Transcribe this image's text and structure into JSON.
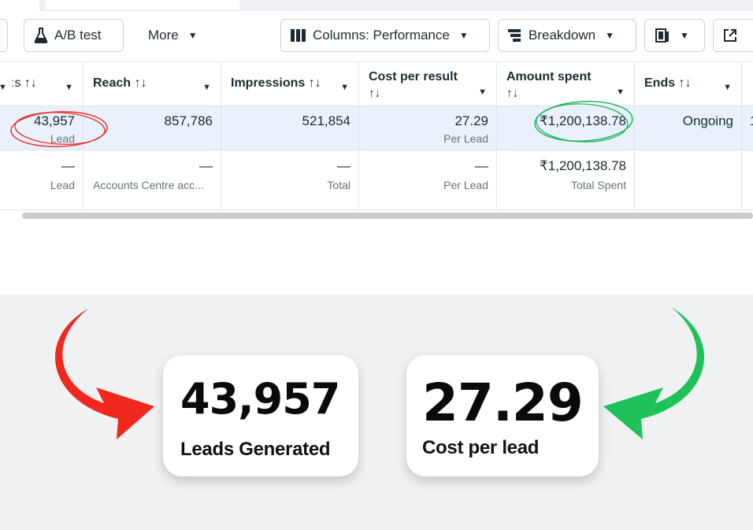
{
  "toolbar": {
    "ab_test_label": "A/B test",
    "more_label": "More",
    "columns_label": "Columns: Performance",
    "breakdown_label": "Breakdown"
  },
  "table": {
    "headers": {
      "results": "ːs ↑↓",
      "reach": "Reach ↑↓",
      "impressions": "Impressions ↑↓",
      "cost_per_result_line1": "Cost per result",
      "cost_per_result_line2": "↑↓",
      "amount_spent_line1": "Amount spent",
      "amount_spent_line2": "↑↓",
      "ends": "Ends ↑↓"
    },
    "row1": {
      "results": "43,957",
      "results_sub": "Lead",
      "reach": "857,786",
      "impressions": "521,854",
      "cost_per_result": "27.29",
      "cost_per_result_sub": "Per Lead",
      "amount_spent": "₹1,200,138.78",
      "ends": "Ongoing"
    },
    "summary": {
      "results": "—",
      "results_sub": "Lead",
      "reach": "—",
      "reach_sub": "Accounts Centre acc...",
      "impressions": "—",
      "impressions_sub": "Total",
      "cost_per_result": "—",
      "cost_per_result_sub": "Per Lead",
      "amount_spent": "₹1,200,138.78",
      "amount_spent_sub": "Total Spent"
    }
  },
  "callouts": {
    "leads_value": "43,957",
    "leads_label": "Leads Generated",
    "cost_value": "27.29",
    "cost_label": "Cost per lead"
  },
  "colors": {
    "red_arrow": "#f0281e",
    "green_arrow": "#1fc25a",
    "row_highlight": "#e9f1fc",
    "panel_bg": "#f0f1f3"
  }
}
